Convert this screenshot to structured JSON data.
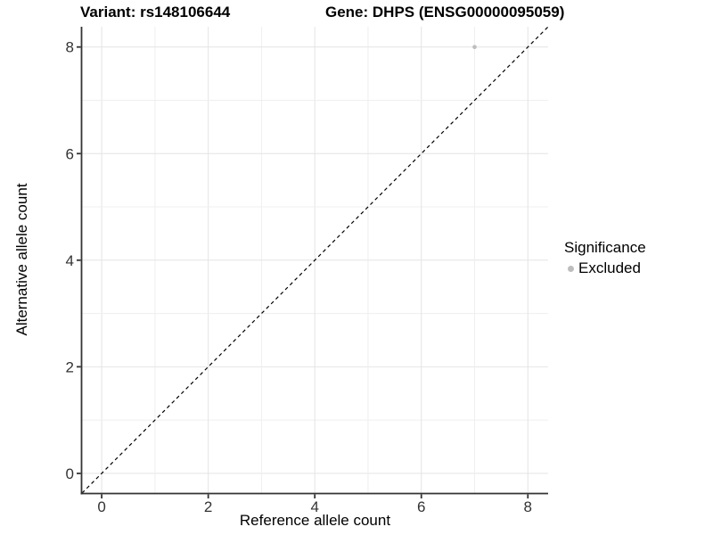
{
  "title": {
    "variant": "Variant: rs148106644",
    "gene": "Gene: DHPS (ENSG00000095059)"
  },
  "legend": {
    "title": "Significance",
    "position": "right",
    "items": [
      {
        "label": "Excluded",
        "color": "#bdbdbd",
        "marker": "circle-icon"
      }
    ]
  },
  "colors": {
    "background": "#ffffff",
    "grid_major": "#e4e4e4",
    "grid_minor": "#efefef",
    "axis_line": "#333333",
    "tick_label": "#333333",
    "title_text": "#000000",
    "point": "#bdbdbd",
    "reference_line": "#000000"
  },
  "chart_data": {
    "type": "scatter",
    "title": "Variant: rs148106644    Gene: DHPS (ENSG00000095059)",
    "xlabel": "Reference allele count",
    "ylabel": "Alternative allele count",
    "xlim": [
      -0.37,
      8.38
    ],
    "ylim": [
      -0.37,
      8.38
    ],
    "xticks": [
      0,
      2,
      4,
      6,
      8
    ],
    "yticks": [
      0,
      2,
      4,
      6,
      8
    ],
    "grid": "on",
    "grid_start": 0,
    "grid_end": 8,
    "grid_interval": 1,
    "series": [
      {
        "name": "Excluded",
        "color": "#bdbdbd",
        "points": [
          {
            "x": 7,
            "y": 8
          }
        ]
      }
    ],
    "reference_line": {
      "type": "identity",
      "style": "dashed",
      "color": "#000000",
      "from": [
        -0.37,
        -0.37
      ],
      "to": [
        8.38,
        8.38
      ]
    },
    "legend_position": "right"
  }
}
